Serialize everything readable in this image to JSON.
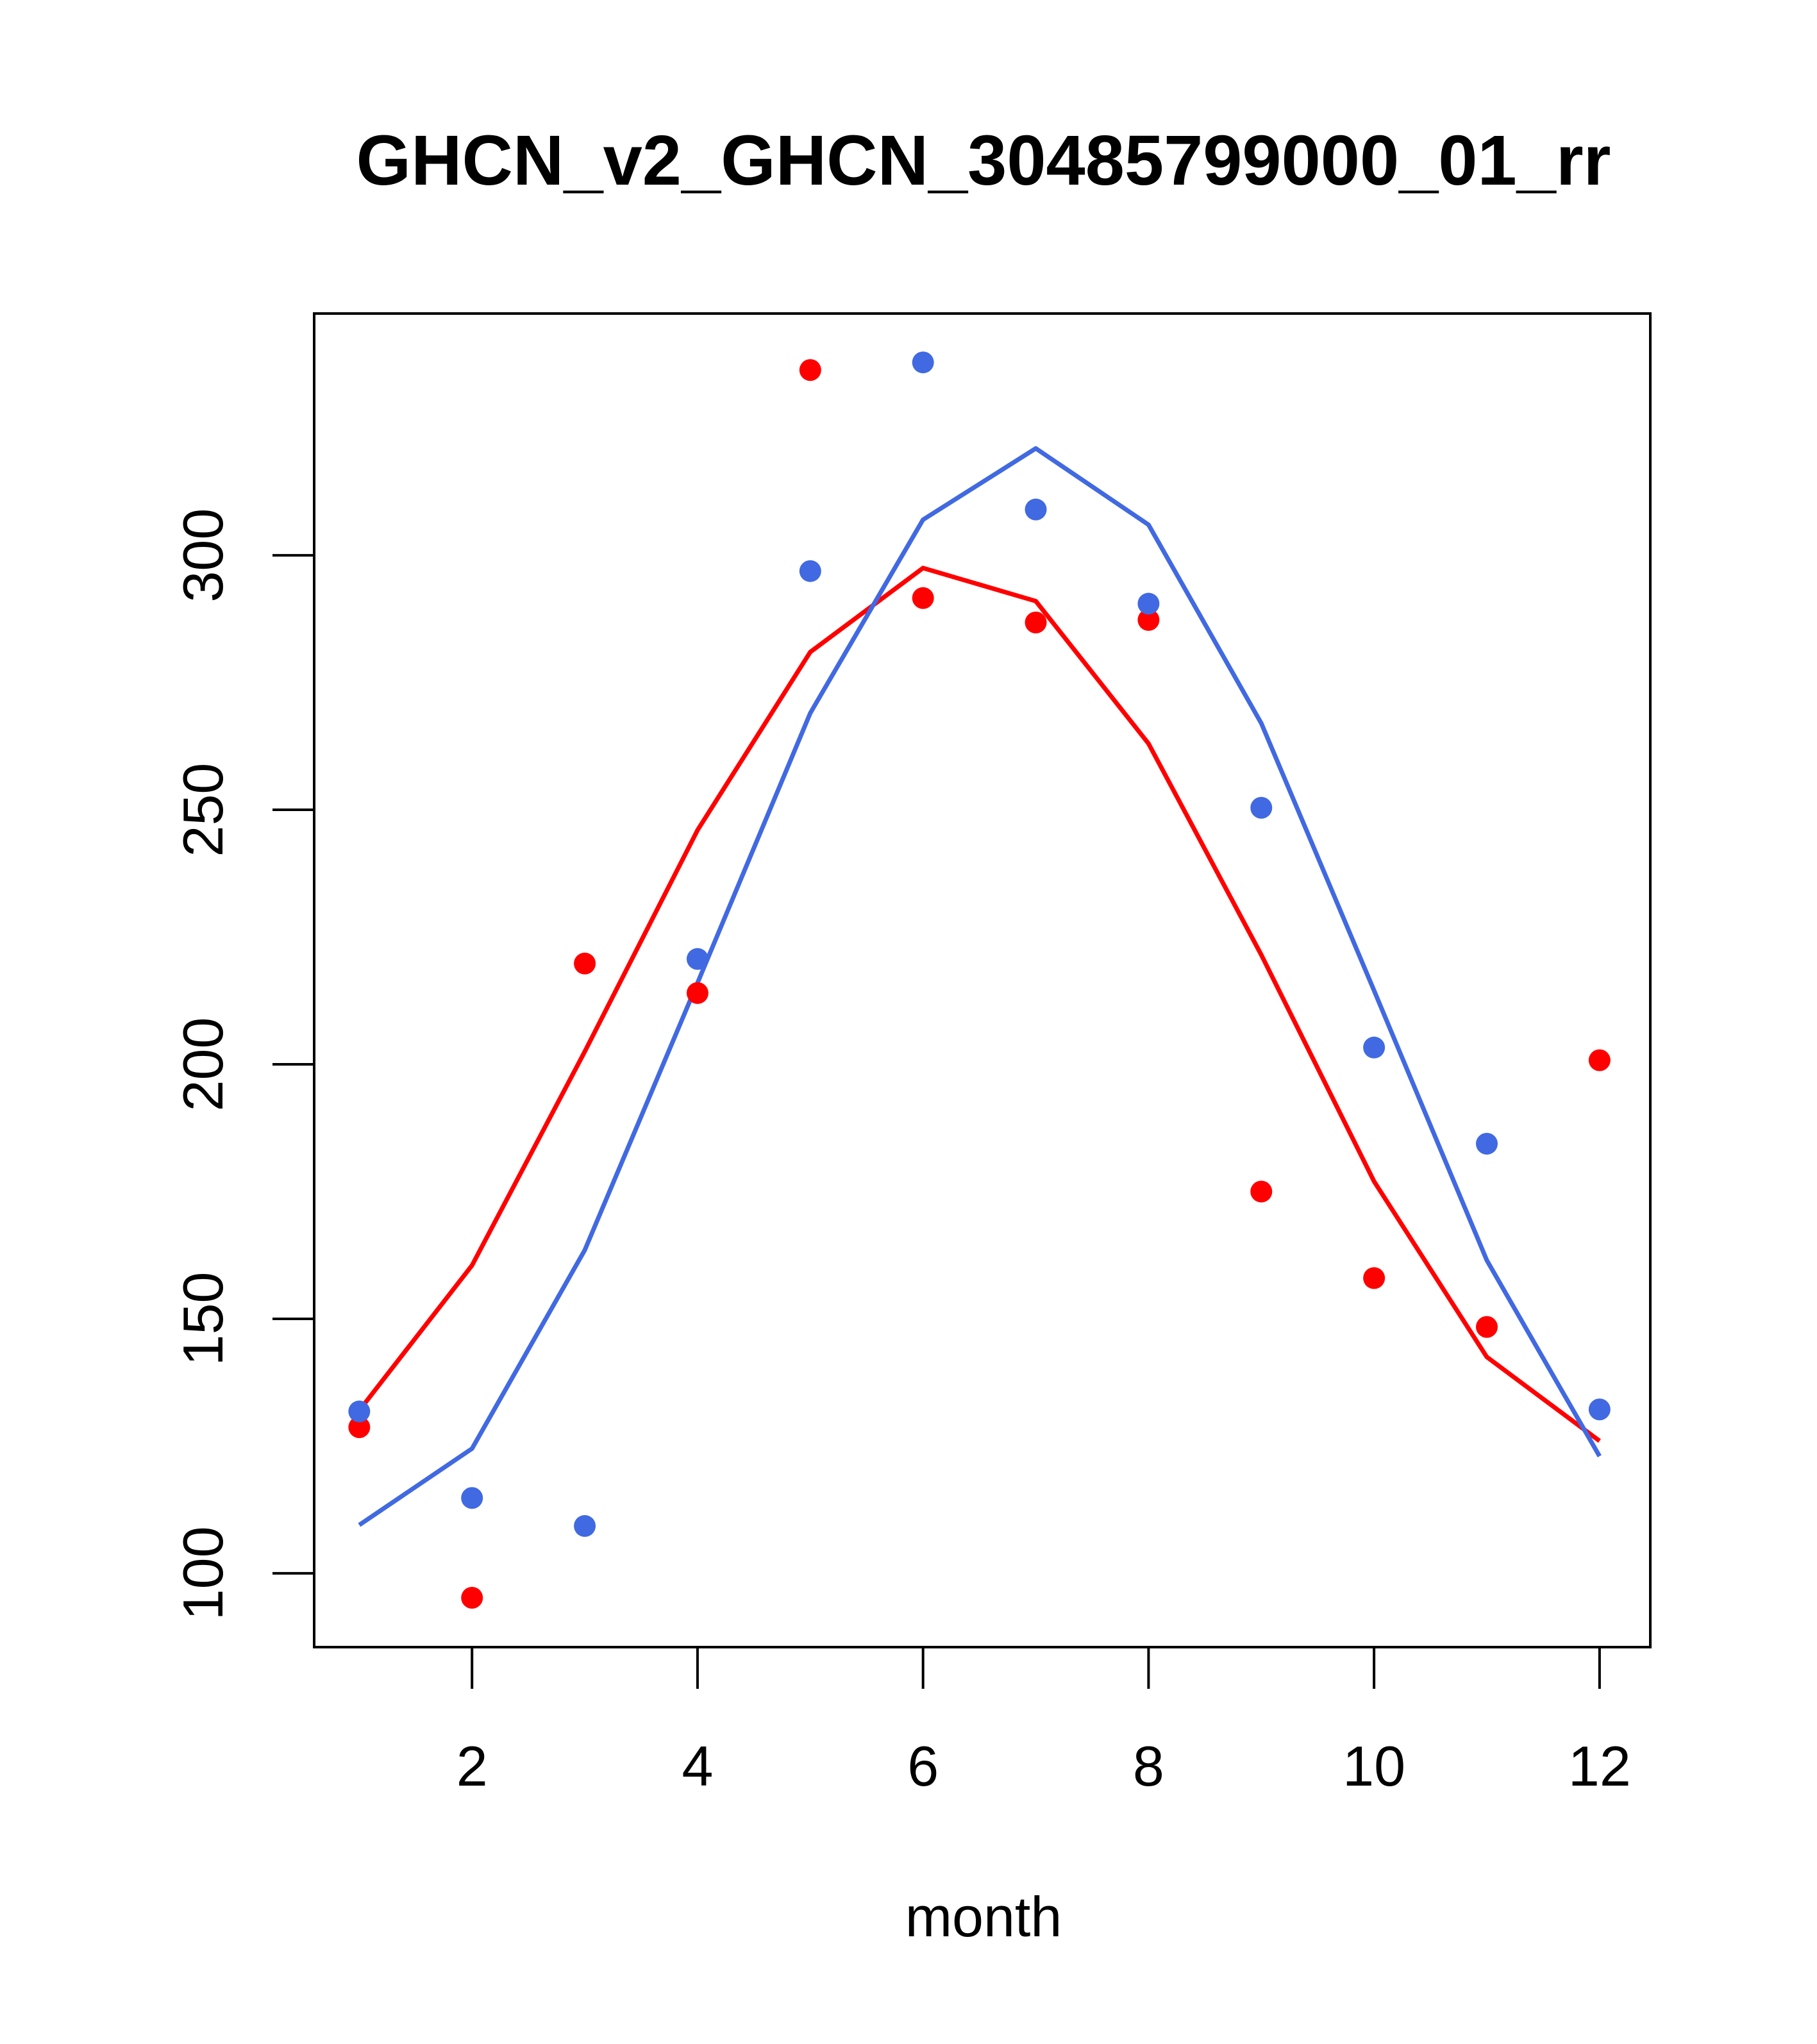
{
  "chart_data": {
    "type": "line",
    "title": "GHCN_v2_GHCN_30485799000_01_rr",
    "xlabel": "month",
    "ylabel": "",
    "xlim": [
      0.6,
      12.45
    ],
    "ylim": [
      85.5,
      347.5
    ],
    "x_ticks": [
      2,
      4,
      6,
      8,
      10,
      12
    ],
    "y_ticks": [
      100,
      150,
      200,
      250,
      300
    ],
    "grid": false,
    "series": [
      {
        "name": "red-points",
        "kind": "points",
        "color": "#ff0000",
        "x": [
          1,
          2,
          3,
          4,
          5,
          6,
          7,
          8,
          9,
          10,
          11,
          12
        ],
        "values": [
          128.7,
          95.2,
          219.8,
          214.0,
          336.4,
          291.6,
          286.8,
          287.3,
          175.0,
          158.0,
          148.4,
          200.8
        ]
      },
      {
        "name": "red-curve",
        "kind": "line",
        "color": "#ff0000",
        "x": [
          1,
          2,
          3,
          4,
          5,
          6,
          7,
          8,
          9,
          10,
          11,
          12
        ],
        "values": [
          132.0,
          160.5,
          202.5,
          246.0,
          281.0,
          297.5,
          291.0,
          263.0,
          221.5,
          177.0,
          142.5,
          126.0
        ]
      },
      {
        "name": "blue-points",
        "kind": "points",
        "color": "#4169e1",
        "x": [
          1,
          2,
          3,
          4,
          5,
          6,
          7,
          8,
          9,
          10,
          11,
          12
        ],
        "values": [
          131.8,
          114.8,
          109.3,
          220.7,
          296.9,
          337.9,
          309.0,
          290.5,
          250.4,
          203.3,
          184.4,
          132.2
        ]
      },
      {
        "name": "blue-curve",
        "kind": "line",
        "color": "#4169e1",
        "x": [
          1,
          2,
          3,
          4,
          5,
          6,
          7,
          8,
          9,
          10,
          11,
          12
        ],
        "values": [
          109.5,
          124.5,
          163.5,
          216.0,
          269.0,
          307.0,
          321.0,
          306.0,
          267.0,
          214.5,
          161.5,
          123.0
        ]
      }
    ]
  }
}
